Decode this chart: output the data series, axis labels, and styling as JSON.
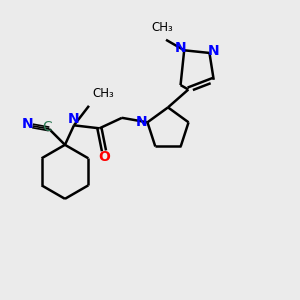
{
  "bg_color": "#ebebeb",
  "bond_color": "#000000",
  "N_color": "#0000ff",
  "O_color": "#ff0000",
  "C_label_color": "#2d7a55",
  "figsize": [
    3.0,
    3.0
  ],
  "dpi": 100,
  "xlim": [
    0,
    10
  ],
  "ylim": [
    0,
    10
  ]
}
